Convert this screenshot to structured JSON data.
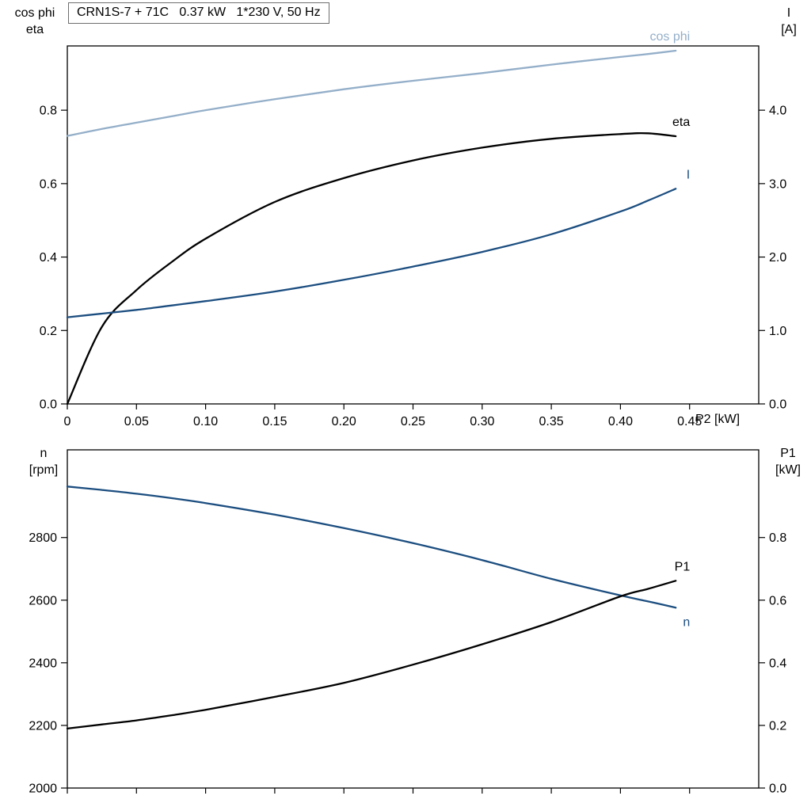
{
  "title": "CRN1S-7 + 71C   0.37 kW   1*230 V, 50 Hz",
  "corner_labels": {
    "top_left_1": "cos phi",
    "top_left_2": "eta",
    "top_right_1": "I",
    "top_right_2": "[A]",
    "bottom_left_1": "n",
    "bottom_left_2": "[rpm]",
    "bottom_right_1": "P1",
    "bottom_right_2": "[kW]"
  },
  "colors": {
    "black": "#000000",
    "dark_blue": "#1c4e80",
    "light_blue": "#94afc9",
    "axis": "#000000"
  },
  "chart_data": [
    {
      "type": "line",
      "title": "CRN1S-7 + 71C   0.37 kW   1*230 V, 50 Hz",
      "xlabel": "P2 [kW]",
      "xlim": [
        0,
        0.5
      ],
      "x_ticks": [
        0,
        0.05,
        0.1,
        0.15,
        0.2,
        0.25,
        0.3,
        0.35,
        0.4,
        0.45
      ],
      "x_tick_labels": [
        "0",
        "0.05",
        "0.10",
        "0.15",
        "0.20",
        "0.25",
        "0.30",
        "0.35",
        "0.40",
        "0.45"
      ],
      "grid": false,
      "left_axis": {
        "label": "cos phi / eta",
        "lim": [
          0,
          0.975
        ],
        "ticks": [
          0,
          0.2,
          0.4,
          0.6,
          0.8
        ],
        "tick_labels": [
          "0.0",
          "0.2",
          "0.4",
          "0.6",
          "0.8"
        ]
      },
      "right_axis": {
        "label": "I [A]",
        "lim": [
          0,
          4.875
        ],
        "ticks": [
          0,
          1,
          2,
          3,
          4
        ],
        "tick_labels": [
          "0.0",
          "1.0",
          "2.0",
          "3.0",
          "4.0"
        ]
      },
      "x": [
        0,
        0.025,
        0.05,
        0.075,
        0.1,
        0.15,
        0.2,
        0.25,
        0.3,
        0.35,
        0.4,
        0.42,
        0.44
      ],
      "series": [
        {
          "name": "cos phi",
          "axis": "left",
          "color": "light_blue",
          "label_position": "above-end",
          "values": [
            0.73,
            0.749,
            0.766,
            0.783,
            0.8,
            0.83,
            0.857,
            0.88,
            0.901,
            0.924,
            0.945,
            0.953,
            0.962
          ]
        },
        {
          "name": "eta",
          "axis": "left",
          "color": "black",
          "label_position": "above-end",
          "values": [
            0.0,
            0.21,
            0.31,
            0.385,
            0.45,
            0.55,
            0.615,
            0.663,
            0.698,
            0.722,
            0.735,
            0.737,
            0.729
          ]
        },
        {
          "name": "I",
          "axis": "right",
          "color": "dark_blue",
          "label_position": "above-end",
          "values": [
            1.18,
            1.23,
            1.28,
            1.34,
            1.4,
            1.53,
            1.69,
            1.87,
            2.07,
            2.31,
            2.62,
            2.77,
            2.93
          ]
        }
      ]
    },
    {
      "type": "line",
      "title": "",
      "xlabel": "",
      "xlim": [
        0,
        0.5
      ],
      "x_ticks": [
        0,
        0.05,
        0.1,
        0.15,
        0.2,
        0.25,
        0.3,
        0.35,
        0.4,
        0.45
      ],
      "x_tick_labels": [],
      "grid": false,
      "left_axis": {
        "label": "n [rpm]",
        "lim": [
          2000,
          3080
        ],
        "ticks": [
          2000,
          2200,
          2400,
          2600,
          2800
        ],
        "tick_labels": [
          "2000",
          "2200",
          "2400",
          "2600",
          "2800"
        ]
      },
      "right_axis": {
        "label": "P1 [kW]",
        "lim": [
          0,
          1.08
        ],
        "ticks": [
          0,
          0.2,
          0.4,
          0.6,
          0.8
        ],
        "tick_labels": [
          "0.0",
          "0.2",
          "0.4",
          "0.6",
          "0.8"
        ]
      },
      "x": [
        0,
        0.025,
        0.05,
        0.075,
        0.1,
        0.15,
        0.2,
        0.25,
        0.3,
        0.35,
        0.4,
        0.42,
        0.44
      ],
      "series": [
        {
          "name": "n",
          "axis": "left",
          "color": "dark_blue",
          "label_position": "below-end",
          "values": [
            2963,
            2952,
            2940,
            2926,
            2910,
            2873,
            2830,
            2782,
            2728,
            2668,
            2615,
            2596,
            2576
          ]
        },
        {
          "name": "P1",
          "axis": "right",
          "color": "black",
          "label_position": "above-end",
          "values": [
            0.19,
            0.203,
            0.216,
            0.232,
            0.25,
            0.291,
            0.336,
            0.394,
            0.459,
            0.53,
            0.612,
            0.636,
            0.662
          ]
        }
      ]
    }
  ]
}
